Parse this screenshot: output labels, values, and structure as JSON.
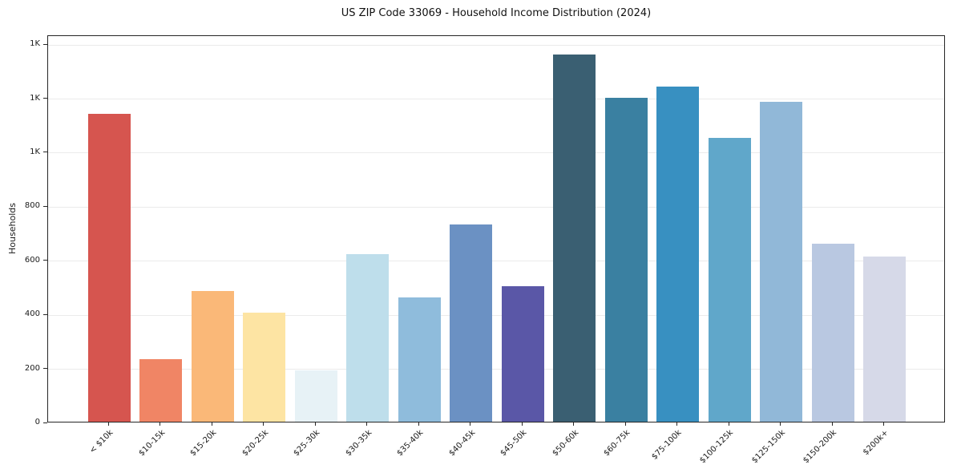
{
  "chart_data": {
    "type": "bar",
    "title": "US ZIP Code 33069 - Household Income Distribution (2024)",
    "xlabel": "",
    "ylabel": "Households",
    "categories": [
      "< $10k",
      "$10-15k",
      "$15-20k",
      "$20-25k",
      "$25-30k",
      "$30-35k",
      "$35-40k",
      "$40-45k",
      "$45-50k",
      "$50-60k",
      "$60-75k",
      "$75-100k",
      "$100-125k",
      "$125-150k",
      "$150-200k",
      "$200k+"
    ],
    "values": [
      1140,
      230,
      485,
      405,
      190,
      620,
      460,
      730,
      500,
      1360,
      1200,
      1240,
      1050,
      1185,
      660,
      610
    ],
    "bar_colors": [
      "#d6554f",
      "#f08565",
      "#fab878",
      "#fde4a3",
      "#e7f2f6",
      "#bedeeb",
      "#8fbcdc",
      "#6b91c3",
      "#5a57a7",
      "#3a5f72",
      "#3a80a1",
      "#3890c1",
      "#60a7ca",
      "#91b8d8",
      "#b9c8e1",
      "#d6d9e8"
    ],
    "ylim": [
      0,
      1433
    ],
    "yticks": {
      "values": [
        0,
        200,
        400,
        600,
        800,
        1000,
        1200,
        1400
      ],
      "labels": [
        "0",
        "200",
        "400",
        "600",
        "800",
        "1K",
        "1K",
        "1K"
      ]
    },
    "grid": "horizontal",
    "legend": "none",
    "axis_color": "#262626",
    "grid_color": "#ebebeb",
    "background": "#ffffff"
  }
}
